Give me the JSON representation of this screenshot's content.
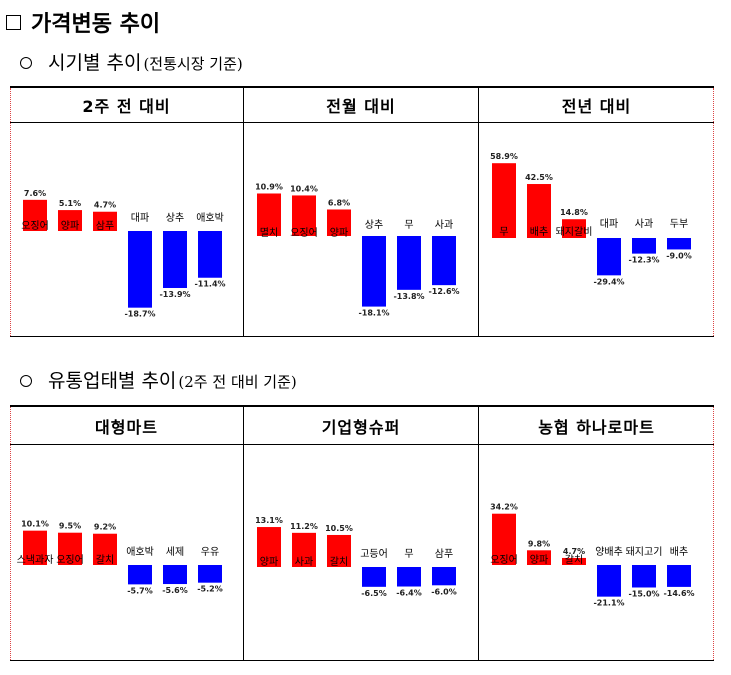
{
  "page_title": "가격변동 추이",
  "section1": {
    "title": "시기별 추이",
    "basis": "(전통시장 기준)"
  },
  "section2": {
    "title": "유통업태별 추이",
    "basis": "(2주 전 대비 기준)"
  },
  "colors": {
    "up": "#ff0000",
    "down": "#0000ff"
  },
  "chart_data": [
    {
      "type": "bar",
      "title": "2주 전 대비",
      "categories": [
        "오징어",
        "양파",
        "삼푸",
        "대파",
        "상추",
        "애호박"
      ],
      "values": [
        7.6,
        5.1,
        4.7,
        -18.7,
        -13.9,
        -11.4
      ],
      "labels": [
        "7.6%",
        "5.1%",
        "4.7%",
        "-18.7%",
        "-13.9%",
        "-11.4%"
      ]
    },
    {
      "type": "bar",
      "title": "전월 대비",
      "categories": [
        "멸치",
        "오징어",
        "양파",
        "상추",
        "무",
        "사과"
      ],
      "values": [
        10.9,
        10.4,
        6.8,
        -18.1,
        -13.8,
        -12.6
      ],
      "labels": [
        "10.9%",
        "10.4%",
        "6.8%",
        "-18.1%",
        "-13.8%",
        "-12.6%"
      ]
    },
    {
      "type": "bar",
      "title": "전년 대비",
      "categories": [
        "무",
        "배추",
        "돼지갈비",
        "대파",
        "사과",
        "두부"
      ],
      "values": [
        58.9,
        42.5,
        14.8,
        -29.4,
        -12.3,
        -9.0
      ],
      "labels": [
        "58.9%",
        "42.5%",
        "14.8%",
        "-29.4%",
        "-12.3%",
        "-9.0%"
      ]
    },
    {
      "type": "bar",
      "title": "대형마트",
      "categories": [
        "스낵과자",
        "오징어",
        "갈치",
        "애호박",
        "세제",
        "우유"
      ],
      "values": [
        10.1,
        9.5,
        9.2,
        -5.7,
        -5.6,
        -5.2
      ],
      "labels": [
        "10.1%",
        "9.5%",
        "9.2%",
        "-5.7%",
        "-5.6%",
        "-5.2%"
      ]
    },
    {
      "type": "bar",
      "title": "기업형슈퍼",
      "categories": [
        "양파",
        "사과",
        "갈치",
        "고등어",
        "무",
        "삼푸"
      ],
      "values": [
        13.1,
        11.2,
        10.5,
        -6.5,
        -6.4,
        -6.0
      ],
      "labels": [
        "13.1%",
        "11.2%",
        "10.5%",
        "-6.5%",
        "-6.4%",
        "-6.0%"
      ]
    },
    {
      "type": "bar",
      "title": "농협 하나로마트",
      "categories": [
        "오징어",
        "양파",
        "갈치",
        "양배추",
        "돼지고기",
        "배추"
      ],
      "values": [
        34.2,
        9.8,
        4.7,
        -21.1,
        -15.0,
        -14.6
      ],
      "labels": [
        "34.2%",
        "9.8%",
        "4.7%",
        "-21.1%",
        "-15.0%",
        "-14.6%"
      ]
    }
  ]
}
